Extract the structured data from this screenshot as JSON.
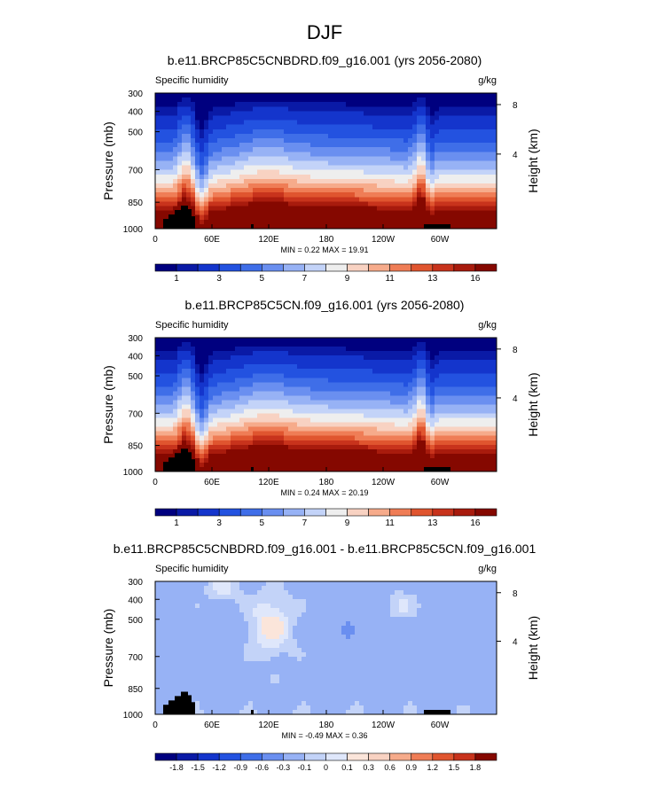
{
  "page": {
    "title": "DJF"
  },
  "chart_data": [
    {
      "type": "heatmap",
      "title": "b.e11.BRCP85C5CNBDRD.f09_g16.001 (yrs 2056-2080)",
      "left_label": "Specific humidity",
      "right_label": "g/kg",
      "ylabel": "Pressure (mb)",
      "y2label": "Height (km)",
      "x_ticks": [
        "0",
        "60E",
        "120E",
        "180",
        "120W",
        "60W"
      ],
      "y_ticks": [
        "300",
        "400",
        "500",
        "700",
        "850",
        "1000"
      ],
      "y2_ticks": [
        "8",
        "4"
      ],
      "stats": "MIN =   0.22  MAX =  19.91",
      "min": 0.22,
      "max": 19.91,
      "colorbar_labels": [
        "1",
        "3",
        "5",
        "7",
        "9",
        "11",
        "13",
        "16"
      ],
      "colorbar_colors": [
        "#00007f",
        "#0a1aa6",
        "#1435cc",
        "#2352e0",
        "#3f6ee8",
        "#6a8ff0",
        "#97b2f5",
        "#c3d3f8",
        "#eeeeee",
        "#f8d2c2",
        "#f6ab8b",
        "#ef7d56",
        "#e0552f",
        "#c8331c",
        "#a81b0d",
        "#850800"
      ],
      "levels": [
        0.5,
        1,
        2,
        3,
        4,
        5,
        6,
        7,
        8,
        9,
        10,
        11,
        12,
        13,
        14,
        16
      ],
      "field": "q"
    },
    {
      "type": "heatmap",
      "title": "b.e11.BRCP85C5CN.f09_g16.001 (yrs 2056-2080)",
      "left_label": "Specific humidity",
      "right_label": "g/kg",
      "ylabel": "Pressure (mb)",
      "y2label": "Height (km)",
      "x_ticks": [
        "0",
        "60E",
        "120E",
        "180",
        "120W",
        "60W"
      ],
      "y_ticks": [
        "300",
        "400",
        "500",
        "700",
        "850",
        "1000"
      ],
      "y2_ticks": [
        "8",
        "4"
      ],
      "stats": "MIN =   0.24  MAX =  20.19",
      "min": 0.24,
      "max": 20.19,
      "colorbar_labels": [
        "1",
        "3",
        "5",
        "7",
        "9",
        "11",
        "13",
        "16"
      ],
      "colorbar_colors": [
        "#00007f",
        "#0a1aa6",
        "#1435cc",
        "#2352e0",
        "#3f6ee8",
        "#6a8ff0",
        "#97b2f5",
        "#c3d3f8",
        "#eeeeee",
        "#f8d2c2",
        "#f6ab8b",
        "#ef7d56",
        "#e0552f",
        "#c8331c",
        "#a81b0d",
        "#850800"
      ],
      "levels": [
        0.5,
        1,
        2,
        3,
        4,
        5,
        6,
        7,
        8,
        9,
        10,
        11,
        12,
        13,
        14,
        16
      ],
      "field": "q"
    },
    {
      "type": "heatmap",
      "title": "b.e11.BRCP85C5CNBDRD.f09_g16.001 - b.e11.BRCP85C5CN.f09_g16.001",
      "left_label": "Specific humidity",
      "right_label": "g/kg",
      "ylabel": "Pressure (mb)",
      "y2label": "Height (km)",
      "x_ticks": [
        "0",
        "60E",
        "120E",
        "180",
        "120W",
        "60W"
      ],
      "y_ticks": [
        "300",
        "400",
        "500",
        "700",
        "850",
        "1000"
      ],
      "y2_ticks": [
        "8",
        "4"
      ],
      "stats": "MIN =  -0.49  MAX =  0.36",
      "min": -0.49,
      "max": 0.36,
      "colorbar_labels": [
        "-1.8",
        "-1.5",
        "-1.2",
        "-0.9",
        "-0.6",
        "-0.3",
        "-0.1",
        "0",
        "0.1",
        "0.3",
        "0.6",
        "0.9",
        "1.2",
        "1.5",
        "1.8"
      ],
      "colorbar_colors": [
        "#00007f",
        "#0a1aa6",
        "#1435cc",
        "#2352e0",
        "#3f6ee8",
        "#6a8ff0",
        "#97b2f5",
        "#c3d3f8",
        "#dfe7fb",
        "#fbe5da",
        "#f8d2c2",
        "#f6ab8b",
        "#ef7d56",
        "#e0552f",
        "#c8331c",
        "#850800"
      ],
      "levels": [
        -1.8,
        -1.5,
        -1.2,
        -0.9,
        -0.6,
        -0.3,
        -0.1,
        0,
        0.1,
        0.3,
        0.6,
        0.9,
        1.2,
        1.5,
        1.8
      ],
      "field": "diff"
    }
  ]
}
